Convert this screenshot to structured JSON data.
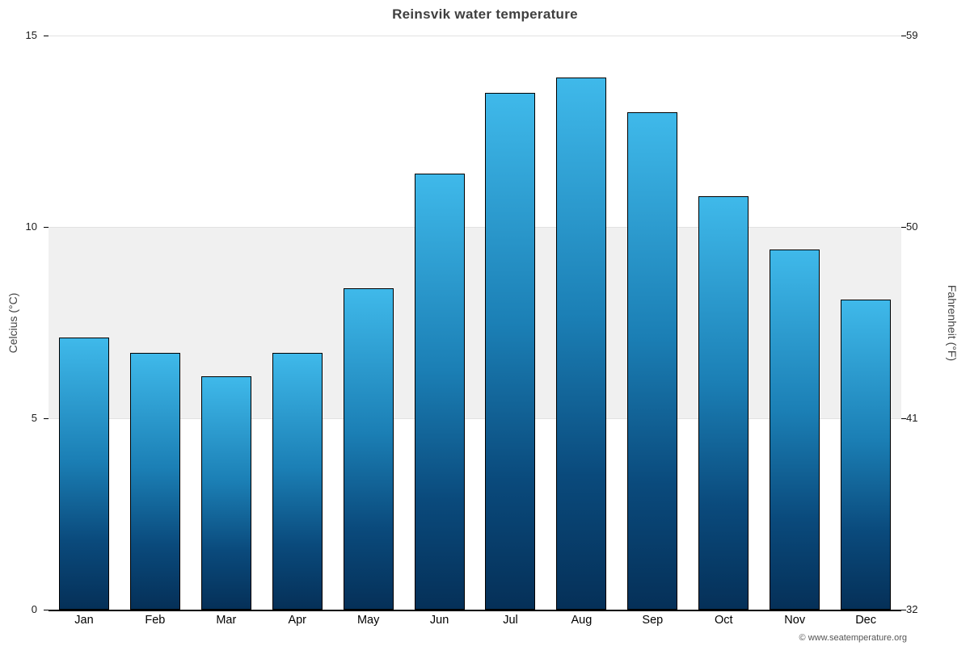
{
  "title": "Reinsvik water temperature",
  "attribution": "© www.seatemperature.org",
  "chart_data": {
    "type": "bar",
    "title": "Reinsvik water temperature",
    "categories": [
      "Jan",
      "Feb",
      "Mar",
      "Apr",
      "May",
      "Jun",
      "Jul",
      "Aug",
      "Sep",
      "Oct",
      "Nov",
      "Dec"
    ],
    "values": [
      7.1,
      6.7,
      6.1,
      6.7,
      8.4,
      11.4,
      13.5,
      13.9,
      13.0,
      10.8,
      9.4,
      8.1
    ],
    "unit": "°C",
    "ylabel_left": "Celcius (°C)",
    "ylabel_right": "Fahrenheit (°F)",
    "ylim": [
      0,
      15
    ],
    "yticks_left": [
      0,
      5,
      10,
      15
    ],
    "yticks_right": [
      32,
      41,
      50,
      59
    ],
    "shaded_band_celsius": [
      5,
      10
    ],
    "legend": "none",
    "bar_gradient_top": "#3fb9ea",
    "bar_gradient_bottom": "#053058",
    "band_color": "#f0f0f0"
  }
}
